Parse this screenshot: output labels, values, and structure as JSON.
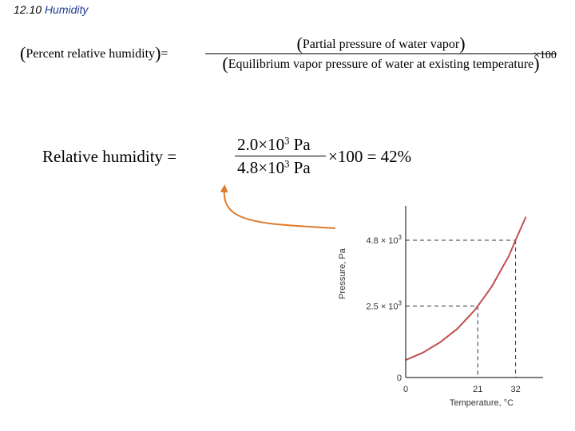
{
  "header": {
    "number": "12.10",
    "title": "Humidity"
  },
  "formula1": {
    "left_open": "(",
    "left_text": "Percent relative humidity",
    "left_close": ")",
    "equals": "=",
    "numerator_open": "(",
    "numerator_text": "Partial pressure of  water vapor",
    "numerator_close": ")",
    "denominator_open": "(",
    "denominator_text": "Equilibrium vapor pressure of  water at existing temperature",
    "denominator_close": ")",
    "times": "×100"
  },
  "formula2": {
    "left": "Relative humidity =",
    "num_mantissa": "2.0×10",
    "num_exp": "3",
    "num_unit": " Pa",
    "den_mantissa": "4.8×10",
    "den_exp": "3",
    "den_unit": " Pa",
    "right": "×100 = 42%"
  },
  "arrow": {
    "color": "#e07b2a"
  },
  "chart_data": {
    "type": "line",
    "xlabel": "Temperature, °C",
    "ylabel": "Pressure, Pa",
    "xlim": [
      0,
      40
    ],
    "ylim": [
      0,
      6000
    ],
    "x_ticks": [
      {
        "value": 0,
        "label": "0"
      },
      {
        "value": 21,
        "label": "21"
      },
      {
        "value": 32,
        "label": "32"
      }
    ],
    "y_ticks": [
      {
        "value": 0,
        "label": "0"
      },
      {
        "value": 2500,
        "label_mantissa": "2.5 × 10",
        "label_exp": "3"
      },
      {
        "value": 4800,
        "label_mantissa": "4.8 × 10",
        "label_exp": "3"
      }
    ],
    "series": [
      {
        "color": "#c0504d",
        "x": [
          0,
          5,
          10,
          15,
          20,
          21,
          25,
          30,
          32,
          35
        ],
        "y": [
          610,
          870,
          1230,
          1700,
          2340,
          2500,
          3170,
          4240,
          4800,
          5620
        ]
      }
    ],
    "guides": [
      {
        "x": 21,
        "y": 2500
      },
      {
        "x": 32,
        "y": 4800
      }
    ],
    "grid": false
  }
}
